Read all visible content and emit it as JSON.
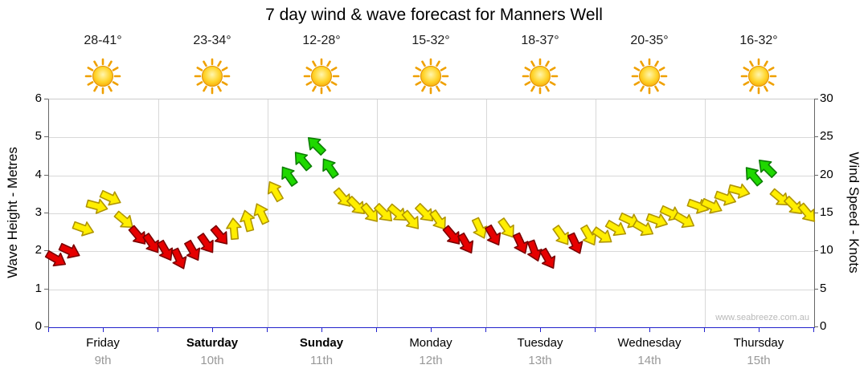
{
  "title": "7 day wind & wave forecast for Manners Well",
  "watermark": "www.seabreeze.com.au",
  "left_axis": {
    "label": "Wave Height - Metres",
    "min": 0,
    "max": 6,
    "ticks": [
      0,
      1,
      2,
      3,
      4,
      5,
      6
    ]
  },
  "right_axis": {
    "label": "Wind Speed - Knots",
    "min": 0,
    "max": 30,
    "ticks": [
      0,
      5,
      10,
      15,
      20,
      25,
      30
    ]
  },
  "days": [
    {
      "name": "Friday",
      "date": "9th",
      "temp": "28-41°",
      "bold": false
    },
    {
      "name": "Saturday",
      "date": "10th",
      "temp": "23-34°",
      "bold": true
    },
    {
      "name": "Sunday",
      "date": "11th",
      "temp": "12-28°",
      "bold": true
    },
    {
      "name": "Monday",
      "date": "12th",
      "temp": "15-32°",
      "bold": false
    },
    {
      "name": "Tuesday",
      "date": "13th",
      "temp": "18-37°",
      "bold": false
    },
    {
      "name": "Wednesday",
      "date": "14th",
      "temp": "20-35°",
      "bold": false
    },
    {
      "name": "Thursday",
      "date": "15th",
      "temp": "16-32°",
      "bold": false
    }
  ],
  "colors": {
    "axis_bottom": "#2222CC",
    "axis_side": "#666666",
    "gridline": "#D8D8D8",
    "day_date_text": "#999999",
    "watermark_text": "#B9B9B9"
  },
  "sun": {
    "ray": "#EFA000",
    "outline": "#E09200",
    "stops": [
      "#FFF6B0",
      "#FFD42A",
      "#F59B00"
    ]
  },
  "chart_data": {
    "type": "scatter",
    "marker": "wind-direction-arrow",
    "title": "7 day wind & wave forecast for Manners Well",
    "x_categories_days": [
      "Friday 9th",
      "Saturday 10th",
      "Sunday 11th",
      "Monday 12th",
      "Tuesday 13th",
      "Wednesday 14th",
      "Thursday 15th"
    ],
    "points_per_day": 8,
    "y_axis_used": "wind_speed_knots",
    "ylim": [
      0,
      30
    ],
    "wave_height_axis_lim_metres": [
      0,
      6
    ],
    "wind_speed_knots": [
      9,
      10,
      13,
      16,
      17,
      14,
      12,
      11,
      10,
      9,
      10,
      11,
      12,
      13,
      14,
      15,
      18,
      20,
      22,
      24,
      21,
      17,
      16,
      15,
      15,
      15,
      14,
      15,
      14,
      12,
      11,
      13,
      12,
      13,
      11,
      10,
      9,
      12,
      11,
      12,
      12,
      13,
      14,
      13,
      14,
      15,
      14,
      16,
      16,
      17,
      18,
      20,
      21,
      17,
      16,
      15
    ],
    "arrow_direction_deg": [
      120,
      115,
      110,
      105,
      115,
      130,
      140,
      145,
      150,
      155,
      150,
      145,
      140,
      355,
      345,
      335,
      330,
      325,
      320,
      315,
      325,
      140,
      135,
      140,
      135,
      130,
      140,
      135,
      145,
      140,
      150,
      155,
      150,
      145,
      155,
      160,
      150,
      145,
      155,
      150,
      125,
      120,
      115,
      120,
      110,
      115,
      120,
      110,
      115,
      110,
      105,
      320,
      315,
      130,
      135,
      140
    ],
    "arrow_color": [
      "red",
      "red",
      "yellow",
      "yellow",
      "yellow",
      "yellow",
      "red",
      "red",
      "red",
      "red",
      "red",
      "red",
      "red",
      "yellow",
      "yellow",
      "yellow",
      "yellow",
      "green",
      "green",
      "green",
      "green",
      "yellow",
      "yellow",
      "yellow",
      "yellow",
      "yellow",
      "yellow",
      "yellow",
      "yellow",
      "red",
      "red",
      "yellow",
      "red",
      "yellow",
      "red",
      "red",
      "red",
      "yellow",
      "red",
      "yellow",
      "yellow",
      "yellow",
      "yellow",
      "yellow",
      "yellow",
      "yellow",
      "yellow",
      "yellow",
      "yellow",
      "yellow",
      "yellow",
      "green",
      "green",
      "yellow",
      "yellow",
      "yellow"
    ],
    "arrow_colors": {
      "red": {
        "fill": "#E60000",
        "stroke": "#7A0000"
      },
      "yellow": {
        "fill": "#FFEE00",
        "stroke": "#B09500"
      },
      "green": {
        "fill": "#1FD800",
        "stroke": "#0B7E00"
      }
    }
  }
}
